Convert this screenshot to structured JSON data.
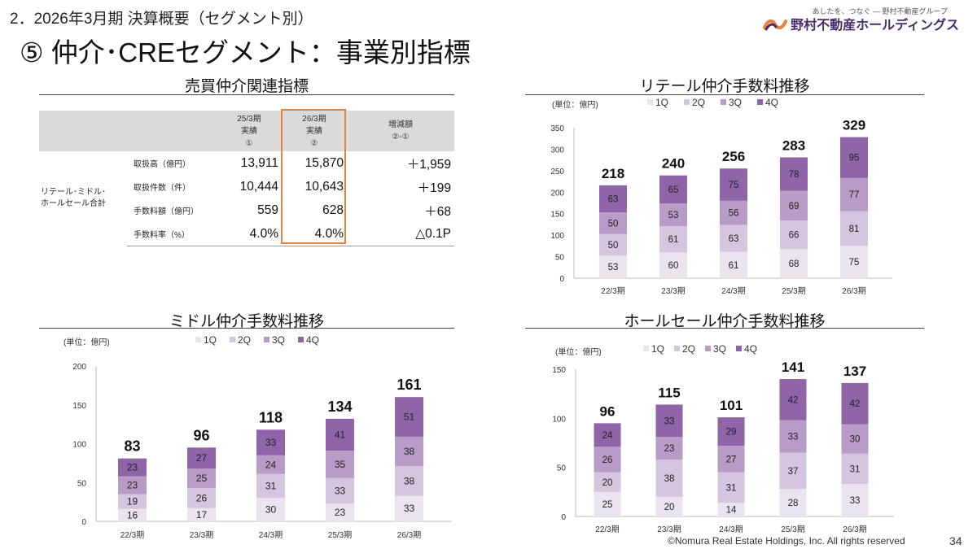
{
  "header": {
    "breadcrumb": "2．2026年3月期 決算概要（セグメント別）",
    "title": "⑤ 仲介･CREセグメント：事業別指標",
    "logo_tagline": "あしたを、つなぐ ― 野村不動産グループ",
    "logo_text": "野村不動産ホールディングス"
  },
  "footer": {
    "copyright": "©Nomura Real Estate Holdings, Inc. All rights reserved",
    "page": "34"
  },
  "table_section": {
    "title": "売買仲介関連指標",
    "headers": [
      {
        "l1": "25/3期",
        "l2": "実績",
        "l3": "①"
      },
      {
        "l1": "26/3期",
        "l2": "実績",
        "l3": "②"
      },
      {
        "l1": "増減額",
        "l2": "②-①",
        "l3": ""
      }
    ],
    "group_label_1": "リテール･ミドル･",
    "group_label_2": "ホールセール合計",
    "rows": [
      {
        "label": "取扱高（億円）",
        "v1": "13,911",
        "v2": "15,870",
        "diff": "＋1,959"
      },
      {
        "label": "取扱件数（件）",
        "v1": "10,444",
        "v2": "10,643",
        "diff": "＋199"
      },
      {
        "label": "手数料額（億円）",
        "v1": "559",
        "v2": "628",
        "diff": "＋68"
      },
      {
        "label": "手数料率（%）",
        "v1": "4.0%",
        "v2": "4.0%",
        "diff": "△0.1P"
      }
    ]
  },
  "colors": {
    "q1": "#ebe3ef",
    "q2": "#d6c5de",
    "q3": "#b99bc8",
    "q4": "#8f64a8",
    "highlight": "#e8843a"
  },
  "chart_data": [
    {
      "id": "retail",
      "type": "bar",
      "title": "リテール仲介手数料推移",
      "unit": "(単位：億円)",
      "categories": [
        "22/3期",
        "23/3期",
        "24/3期",
        "25/3期",
        "26/3期"
      ],
      "series": [
        {
          "name": "1Q",
          "values": [
            53,
            60,
            61,
            68,
            75
          ]
        },
        {
          "name": "2Q",
          "values": [
            50,
            61,
            63,
            66,
            81
          ]
        },
        {
          "name": "3Q",
          "values": [
            50,
            53,
            56,
            69,
            77
          ]
        },
        {
          "name": "4Q",
          "values": [
            63,
            65,
            75,
            78,
            95
          ]
        }
      ],
      "totals": [
        218,
        240,
        256,
        283,
        329
      ],
      "ylim": [
        0,
        350
      ],
      "yticks": [
        0,
        50,
        100,
        150,
        200,
        250,
        300,
        350
      ],
      "legend": "top"
    },
    {
      "id": "middle",
      "type": "bar",
      "title": "ミドル仲介手数料推移",
      "unit": "(単位：億円)",
      "categories": [
        "22/3期",
        "23/3期",
        "24/3期",
        "25/3期",
        "26/3期"
      ],
      "series": [
        {
          "name": "1Q",
          "values": [
            16,
            17,
            30,
            23,
            33
          ]
        },
        {
          "name": "2Q",
          "values": [
            19,
            26,
            31,
            33,
            38
          ]
        },
        {
          "name": "3Q",
          "values": [
            23,
            25,
            24,
            35,
            38
          ]
        },
        {
          "name": "4Q",
          "values": [
            23,
            27,
            33,
            41,
            51
          ]
        }
      ],
      "totals": [
        83,
        96,
        118,
        134,
        161
      ],
      "ylim": [
        0,
        200
      ],
      "yticks": [
        0,
        50,
        100,
        150,
        200
      ],
      "legend": "top"
    },
    {
      "id": "wholesale",
      "type": "bar",
      "title": "ホールセール仲介手数料推移",
      "unit": "(単位：億円)",
      "categories": [
        "22/3期",
        "23/3期",
        "24/3期",
        "25/3期",
        "26/3期"
      ],
      "series": [
        {
          "name": "1Q",
          "values": [
            25,
            20,
            14,
            28,
            33
          ]
        },
        {
          "name": "2Q",
          "values": [
            20,
            38,
            31,
            37,
            31
          ]
        },
        {
          "name": "3Q",
          "values": [
            26,
            23,
            27,
            33,
            30
          ]
        },
        {
          "name": "4Q",
          "values": [
            24,
            33,
            29,
            42,
            42
          ]
        }
      ],
      "totals": [
        96,
        115,
        101,
        141,
        137
      ],
      "ylim": [
        0,
        150
      ],
      "yticks": [
        0,
        50,
        100,
        150
      ],
      "legend": "top"
    }
  ]
}
